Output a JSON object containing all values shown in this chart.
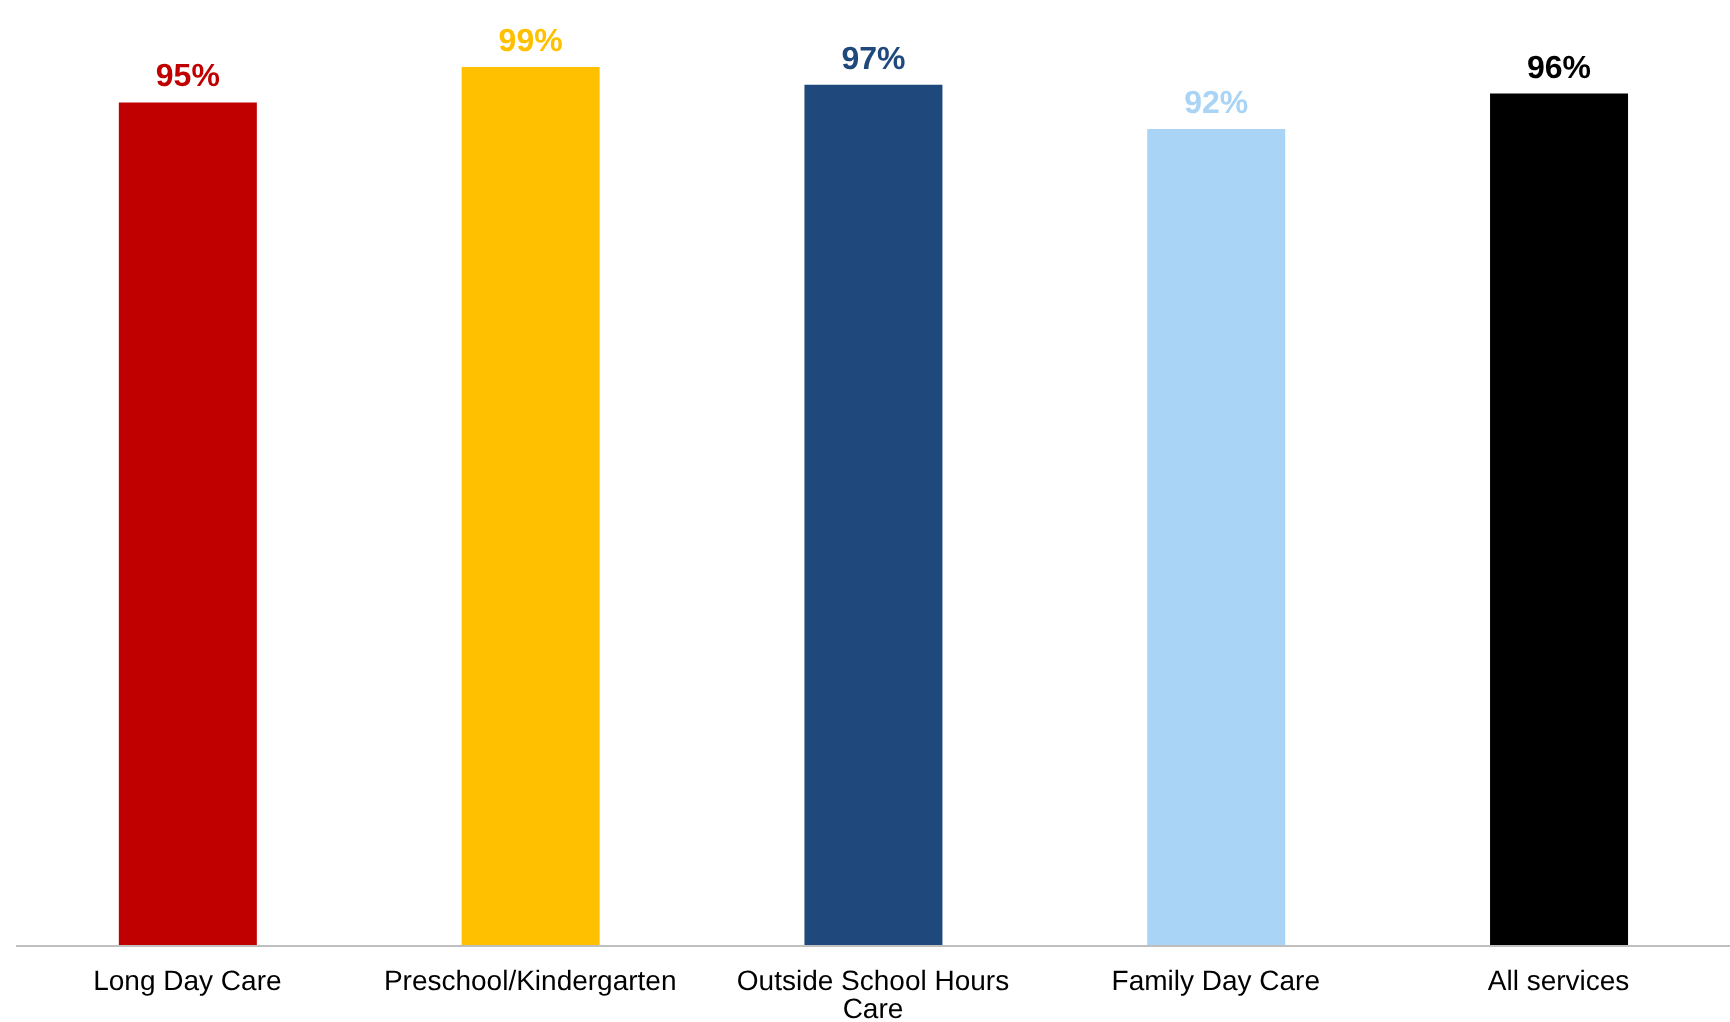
{
  "chart_data": {
    "type": "bar",
    "categories": [
      "Long Day Care",
      "Preschool/Kindergarten",
      "Outside School Hours Care",
      "Family Day Care",
      "All services"
    ],
    "values": [
      95,
      99,
      97,
      92,
      96
    ],
    "colors": [
      "#c00000",
      "#ffc000",
      "#1f497d",
      "#a9d4f5",
      "#000000"
    ],
    "value_labels": [
      "95%",
      "99%",
      "97%",
      "92%",
      "96%"
    ]
  }
}
